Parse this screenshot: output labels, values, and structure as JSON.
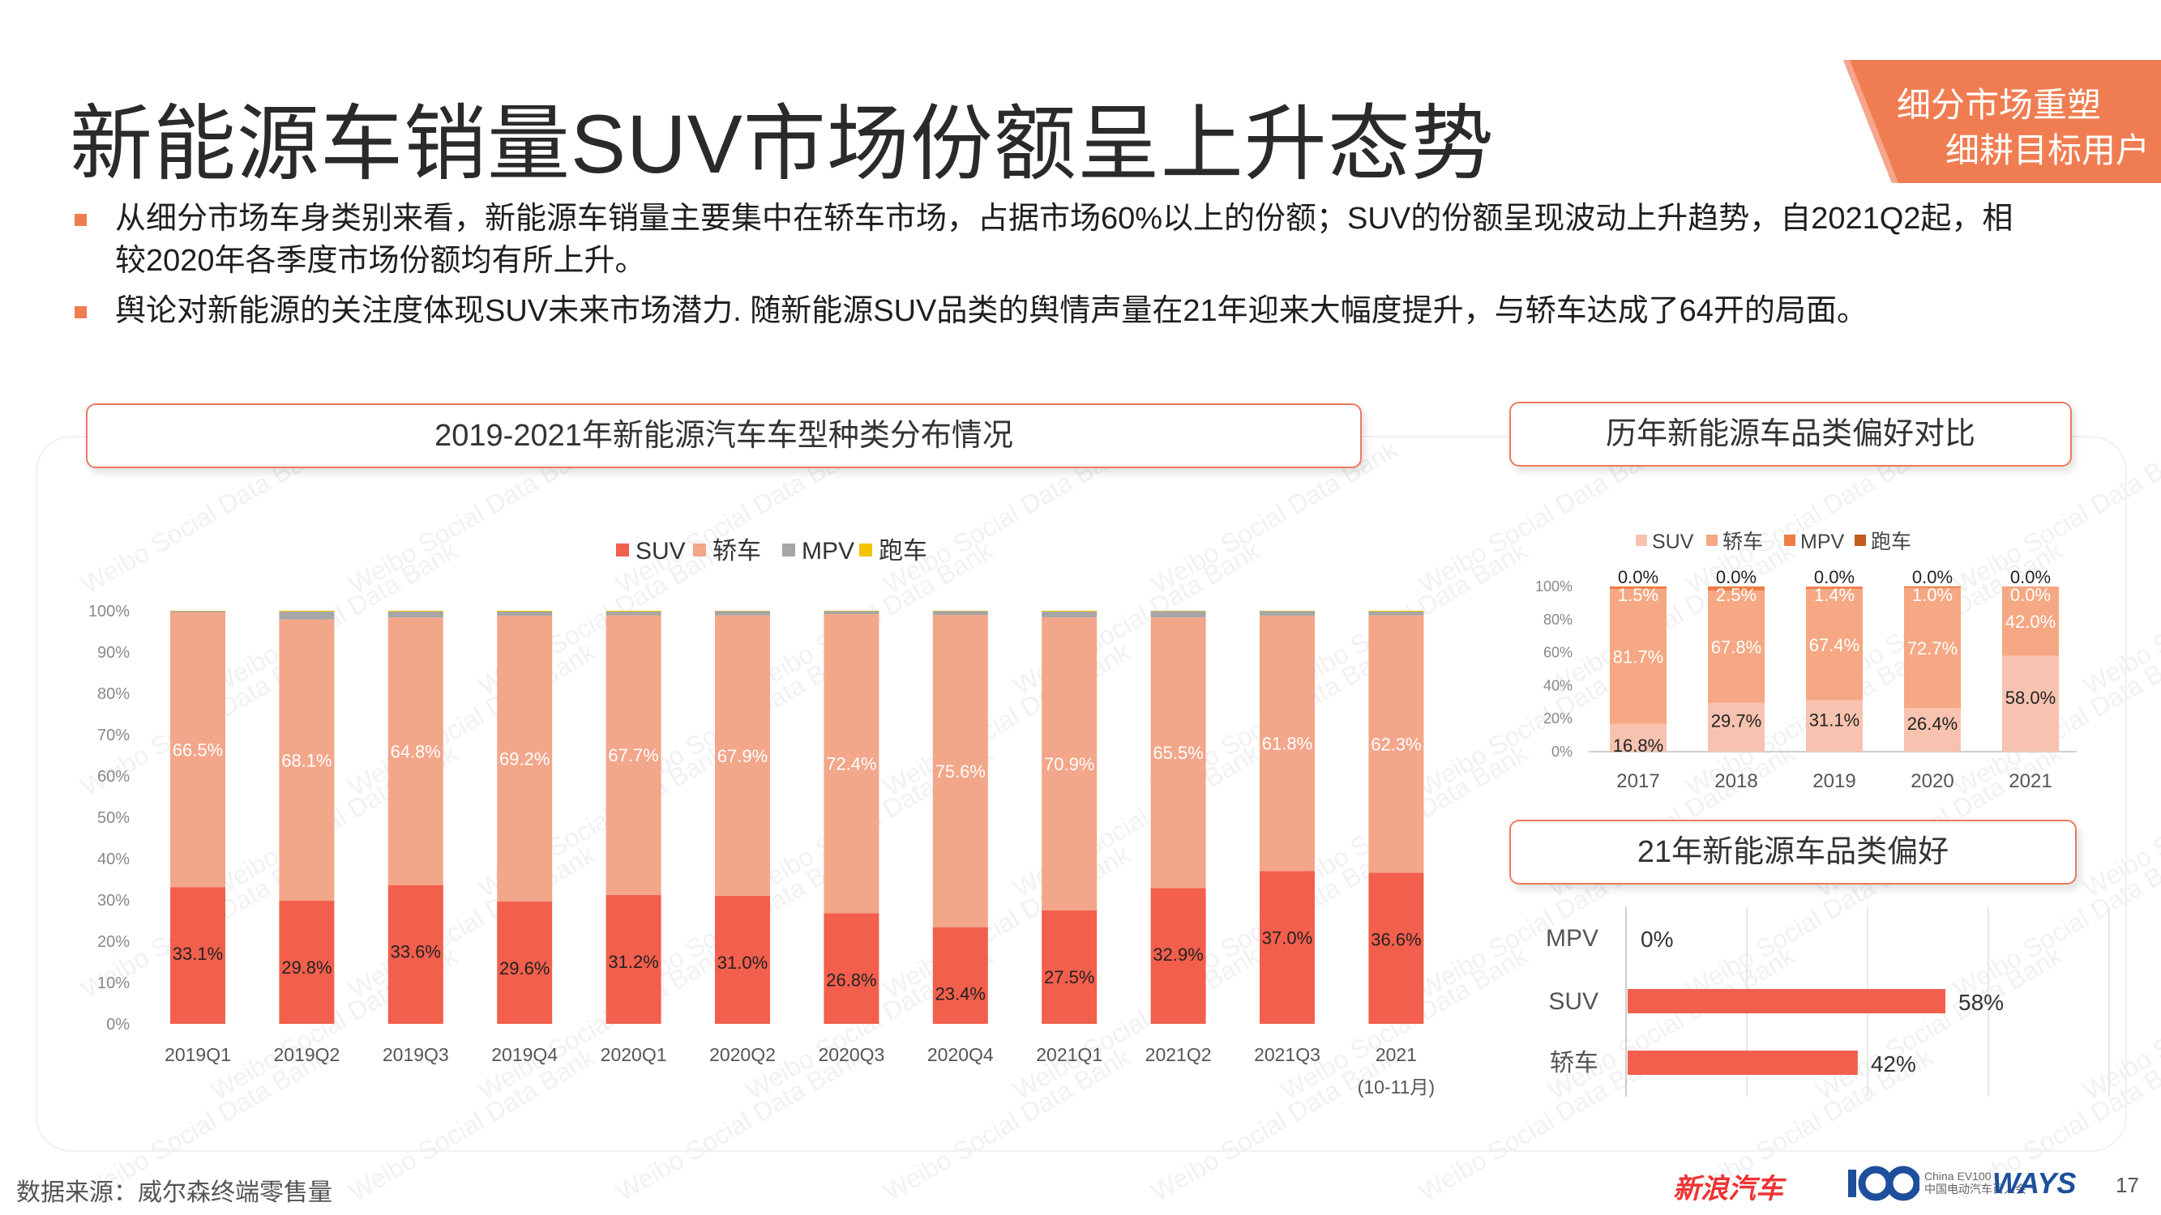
{
  "page": {
    "title": "新能源车销量SUV市场份额呈上升态势",
    "corner_line1": "细分市场重塑",
    "corner_line2": "细耕目标用户",
    "bullets": [
      "从细分市场车身类别来看，新能源车销量主要集中在轿车市场，占据市场60%以上的份额；SUV的份额呈现波动上升趋势，自2021Q2起，相较2020年各季度市场份额均有所上升。",
      "舆论对新能源的关注度体现SUV未来市场潜力. 随新能源SUV品类的舆情声量在21年迎来大幅度提升，与轿车达成了64开的局面。"
    ],
    "source": "数据来源：威尔森终端零售量",
    "page_number": "17",
    "watermark": "Weibo Social Data Bank",
    "logos": {
      "sina": "新浪汽车",
      "ev_line1": "China EV100",
      "ev_line2": "中国电动汽车百人会",
      "ways": "WAYS"
    },
    "accent_color": "#f07d52"
  },
  "chart_data": [
    {
      "type": "bar",
      "stacked": true,
      "title": "2019-2021年新能源汽车车型种类分布情况",
      "categories": [
        "2019Q1",
        "2019Q2",
        "2019Q3",
        "2019Q4",
        "2020Q1",
        "2020Q2",
        "2020Q3",
        "2020Q4",
        "2021Q1",
        "2021Q2",
        "2021Q3",
        "2021"
      ],
      "category_sublabels": [
        "",
        "",
        "",
        "",
        "",
        "",
        "",
        "",
        "",
        "",
        "",
        "(10-11月)"
      ],
      "series": [
        {
          "name": "SUV",
          "color": "#f25f4c",
          "values": [
            33.1,
            29.8,
            33.6,
            29.6,
            31.2,
            31.0,
            26.8,
            23.4,
            27.5,
            32.9,
            37.0,
            36.6
          ],
          "labels": [
            "33.1%",
            "29.8%",
            "33.6%",
            "29.6%",
            "31.2%",
            "31.0%",
            "26.8%",
            "23.4%",
            "27.5%",
            "32.9%",
            "37.0%",
            "36.6%"
          ]
        },
        {
          "name": "轿车",
          "color": "#f2a68a",
          "values": [
            66.5,
            68.1,
            64.8,
            69.2,
            67.7,
            67.9,
            72.4,
            75.6,
            70.9,
            65.5,
            61.8,
            62.3
          ],
          "labels": [
            "66.5%",
            "68.1%",
            "64.8%",
            "69.2%",
            "67.7%",
            "67.9%",
            "72.4%",
            "75.6%",
            "70.9%",
            "65.5%",
            "61.8%",
            "62.3%"
          ]
        },
        {
          "name": "MPV",
          "color": "#a6a6a6",
          "values": [
            0.3,
            1.9,
            1.4,
            1.0,
            0.9,
            1.0,
            0.7,
            0.9,
            1.4,
            1.5,
            1.1,
            0.9
          ]
        },
        {
          "name": "跑车",
          "color": "#f5c400",
          "values": [
            0.1,
            0.2,
            0.2,
            0.2,
            0.2,
            0.1,
            0.1,
            0.1,
            0.2,
            0.1,
            0.1,
            0.2
          ]
        }
      ],
      "ylim": [
        0,
        100
      ],
      "yticks": [
        "0%",
        "10%",
        "20%",
        "30%",
        "40%",
        "50%",
        "60%",
        "70%",
        "80%",
        "90%",
        "100%"
      ],
      "legend": "top-center"
    },
    {
      "type": "bar",
      "stacked": true,
      "title": "历年新能源车品类偏好对比",
      "categories": [
        "2017",
        "2018",
        "2019",
        "2020",
        "2021"
      ],
      "series": [
        {
          "name": "SUV",
          "color": "#f7c3b0",
          "values": [
            16.8,
            29.7,
            31.1,
            26.4,
            58.0
          ],
          "labels": [
            "16.8%",
            "29.7%",
            "31.1%",
            "26.4%",
            "58.0%"
          ]
        },
        {
          "name": "轿车",
          "color": "#f5a883",
          "values": [
            81.7,
            67.8,
            67.4,
            72.7,
            42.0
          ],
          "labels": [
            "81.7%",
            "67.8%",
            "67.4%",
            "72.7%",
            "42.0%"
          ]
        },
        {
          "name": "MPV",
          "color": "#ee7d44",
          "values": [
            1.5,
            2.5,
            1.4,
            1.0,
            0.0
          ],
          "labels": [
            "1.5%",
            "2.5%",
            "1.4%",
            "1.0%",
            "0.0%"
          ]
        },
        {
          "name": "跑车",
          "color": "#c55a1e",
          "values": [
            0.0,
            0.0,
            0.0,
            0.0,
            0.0
          ],
          "labels": [
            "0.0%",
            "0.0%",
            "0.0%",
            "0.0%",
            "0.0%"
          ]
        }
      ],
      "ylim": [
        0,
        100
      ],
      "yticks": [
        "0%",
        "20%",
        "40%",
        "60%",
        "80%",
        "100%"
      ],
      "legend": "top-center"
    },
    {
      "type": "bar",
      "orientation": "horizontal",
      "title": "21年新能源车品类偏好",
      "categories": [
        "MPV",
        "SUV",
        "轿车"
      ],
      "values": [
        0,
        58,
        42
      ],
      "labels": [
        "0%",
        "58%",
        "42%"
      ],
      "color": "#f25f4c",
      "xlim": [
        0,
        100
      ]
    }
  ]
}
